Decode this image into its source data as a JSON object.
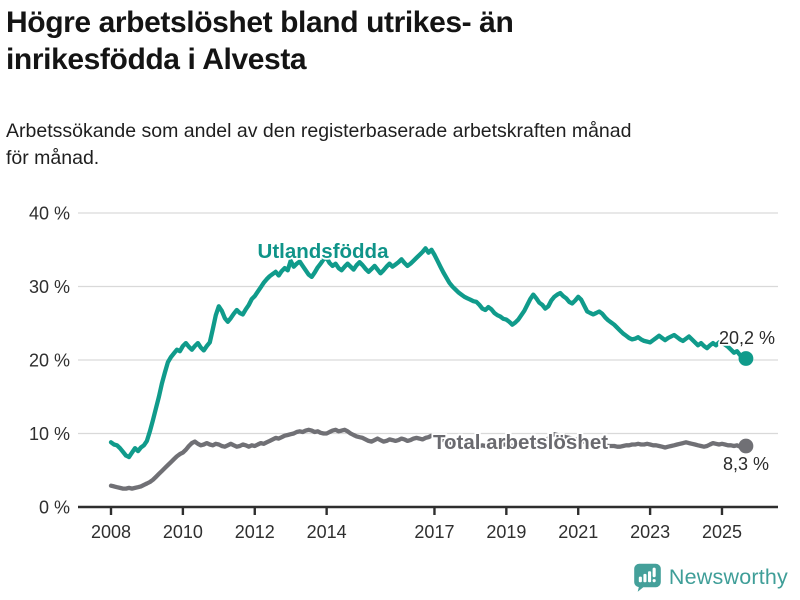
{
  "header": {
    "title_line1": "Högre arbetslöshet bland utrikes- än",
    "title_line2": "inrikesfödda i Alvesta",
    "subtitle_line1": "Arbetssökande som andel av den registerbaserade arbetskraften månad",
    "subtitle_line2": "för månad."
  },
  "footer": {
    "brand": "Newsworthy",
    "brand_color": "#3f9e98",
    "logo_icon": "bar-chart-speech-bubble-icon",
    "logo_color": "#44a09a"
  },
  "colors": {
    "grid": "#d9d9d9",
    "axis": "#2e2e2e",
    "tick_text": "#2f2f2f",
    "annotation_text": "#2b2b2b"
  },
  "chart_data": {
    "type": "line",
    "title": "Högre arbetslöshet bland utrikes- än inrikesfödda i Alvesta",
    "subtitle": "Arbetssökande som andel av den registerbaserade arbetskraften månad för månad.",
    "x_start_year": 2008,
    "x_step_months": 1,
    "x_end_label_note": "monthly Jan 2008 - Sep 2025",
    "x_ticks": [
      2008,
      2010,
      2012,
      2014,
      2017,
      2019,
      2021,
      2023,
      2025
    ],
    "ylim": [
      0,
      40
    ],
    "y_ticks": [
      0,
      10,
      20,
      30,
      40
    ],
    "y_tick_suffix": " %",
    "grid": "horizontal",
    "legend_position": "inline-labels",
    "series": [
      {
        "name": "Utlandsfödda",
        "color": "#109b8b",
        "label_color": "#0f9489",
        "end_label": "20,2 %",
        "end_value": 20.2,
        "values": [
          8.8,
          8.5,
          8.4,
          8.0,
          7.5,
          7.0,
          6.8,
          7.4,
          8.0,
          7.6,
          8.1,
          8.4,
          9.0,
          10.3,
          11.8,
          13.4,
          15.0,
          16.8,
          18.3,
          19.7,
          20.4,
          20.9,
          21.4,
          21.2,
          21.9,
          22.3,
          21.8,
          21.4,
          21.9,
          22.3,
          21.7,
          21.3,
          21.9,
          22.4,
          24.2,
          26.1,
          27.3,
          26.7,
          25.7,
          25.2,
          25.7,
          26.3,
          26.8,
          26.4,
          26.2,
          26.9,
          27.5,
          28.3,
          28.7,
          29.3,
          29.9,
          30.5,
          31.0,
          31.4,
          31.7,
          32.0,
          31.5,
          32.1,
          32.5,
          32.2,
          33.5,
          32.7,
          33.1,
          33.4,
          32.8,
          32.2,
          31.6,
          31.3,
          31.9,
          32.6,
          33.1,
          33.7,
          33.9,
          33.2,
          32.8,
          33.1,
          32.5,
          32.2,
          32.7,
          33.1,
          32.7,
          32.3,
          32.9,
          33.3,
          32.9,
          32.4,
          32.0,
          32.4,
          32.8,
          32.3,
          31.8,
          32.2,
          32.7,
          33.1,
          32.7,
          33.0,
          33.3,
          33.7,
          33.2,
          32.8,
          33.1,
          33.5,
          33.9,
          34.3,
          34.7,
          35.2,
          34.6,
          35.0,
          34.3,
          33.5,
          32.7,
          31.9,
          31.2,
          30.5,
          30.0,
          29.6,
          29.2,
          28.9,
          28.6,
          28.4,
          28.2,
          28.0,
          27.9,
          27.5,
          27.0,
          26.8,
          27.2,
          26.9,
          26.4,
          26.1,
          25.9,
          25.6,
          25.5,
          25.2,
          24.8,
          25.1,
          25.5,
          26.1,
          26.7,
          27.5,
          28.3,
          28.9,
          28.4,
          27.8,
          27.5,
          27.0,
          27.3,
          28.1,
          28.6,
          28.9,
          29.1,
          28.7,
          28.4,
          27.9,
          27.7,
          28.1,
          28.6,
          28.2,
          27.4,
          26.6,
          26.4,
          26.2,
          26.4,
          26.6,
          26.3,
          25.8,
          25.4,
          25.1,
          24.8,
          24.4,
          24.0,
          23.6,
          23.3,
          23.0,
          22.8,
          22.9,
          23.1,
          22.8,
          22.6,
          22.5,
          22.4,
          22.7,
          23.0,
          23.3,
          23.0,
          22.7,
          23.0,
          23.2,
          23.4,
          23.1,
          22.8,
          22.6,
          22.9,
          23.2,
          22.8,
          22.4,
          22.0,
          22.3,
          21.9,
          21.6,
          22.0,
          22.3,
          22.0,
          22.4,
          22.3,
          22.1,
          21.8,
          21.4,
          21.0,
          21.2,
          20.7,
          20.4,
          20.2
        ]
      },
      {
        "name": "Total arbetslöshet",
        "color": "#707075",
        "label_color": "#6a6a6f",
        "end_label": "8,3 %",
        "end_value": 8.3,
        "values": [
          2.9,
          2.8,
          2.7,
          2.6,
          2.5,
          2.5,
          2.6,
          2.5,
          2.6,
          2.7,
          2.8,
          3.0,
          3.2,
          3.4,
          3.7,
          4.1,
          4.5,
          4.9,
          5.3,
          5.7,
          6.1,
          6.5,
          6.9,
          7.2,
          7.4,
          7.8,
          8.3,
          8.7,
          8.9,
          8.6,
          8.4,
          8.5,
          8.7,
          8.5,
          8.4,
          8.6,
          8.5,
          8.3,
          8.2,
          8.4,
          8.6,
          8.4,
          8.2,
          8.3,
          8.5,
          8.4,
          8.2,
          8.4,
          8.3,
          8.5,
          8.7,
          8.6,
          8.8,
          9.0,
          9.2,
          9.4,
          9.3,
          9.5,
          9.7,
          9.8,
          9.9,
          10.0,
          10.2,
          10.3,
          10.2,
          10.4,
          10.5,
          10.4,
          10.2,
          10.3,
          10.1,
          10.0,
          10.0,
          10.2,
          10.4,
          10.5,
          10.3,
          10.4,
          10.5,
          10.3,
          10.0,
          9.8,
          9.6,
          9.5,
          9.4,
          9.2,
          9.0,
          8.9,
          9.1,
          9.3,
          9.1,
          8.9,
          9.0,
          9.2,
          9.1,
          9.0,
          9.1,
          9.3,
          9.2,
          9.0,
          9.1,
          9.3,
          9.4,
          9.3,
          9.2,
          9.4,
          9.5,
          9.7,
          9.7,
          9.5,
          9.3,
          9.1,
          8.9,
          8.8,
          8.7,
          8.6,
          8.5,
          8.4,
          8.5,
          8.4,
          8.4,
          8.3,
          8.2,
          8.3,
          8.4,
          8.3,
          8.2,
          8.3,
          8.4,
          8.3,
          8.4,
          8.5,
          8.5,
          8.4,
          8.3,
          8.4,
          8.5,
          8.6,
          8.7,
          8.8,
          8.9,
          9.0,
          8.9,
          8.8,
          8.9,
          9.0,
          9.3,
          9.7,
          9.9,
          9.8,
          9.7,
          9.6,
          9.5,
          9.4,
          9.3,
          9.2,
          9.1,
          9.0,
          8.9,
          8.8,
          8.7,
          8.6,
          8.6,
          8.5,
          8.4,
          8.4,
          8.3,
          8.3,
          8.3,
          8.2,
          8.2,
          8.3,
          8.4,
          8.4,
          8.5,
          8.5,
          8.6,
          8.5,
          8.5,
          8.6,
          8.5,
          8.4,
          8.4,
          8.3,
          8.2,
          8.1,
          8.2,
          8.3,
          8.4,
          8.5,
          8.6,
          8.7,
          8.8,
          8.7,
          8.6,
          8.5,
          8.4,
          8.3,
          8.2,
          8.3,
          8.5,
          8.7,
          8.6,
          8.5,
          8.6,
          8.5,
          8.4,
          8.4,
          8.3,
          8.4,
          8.2,
          8.3,
          8.3
        ]
      }
    ]
  }
}
